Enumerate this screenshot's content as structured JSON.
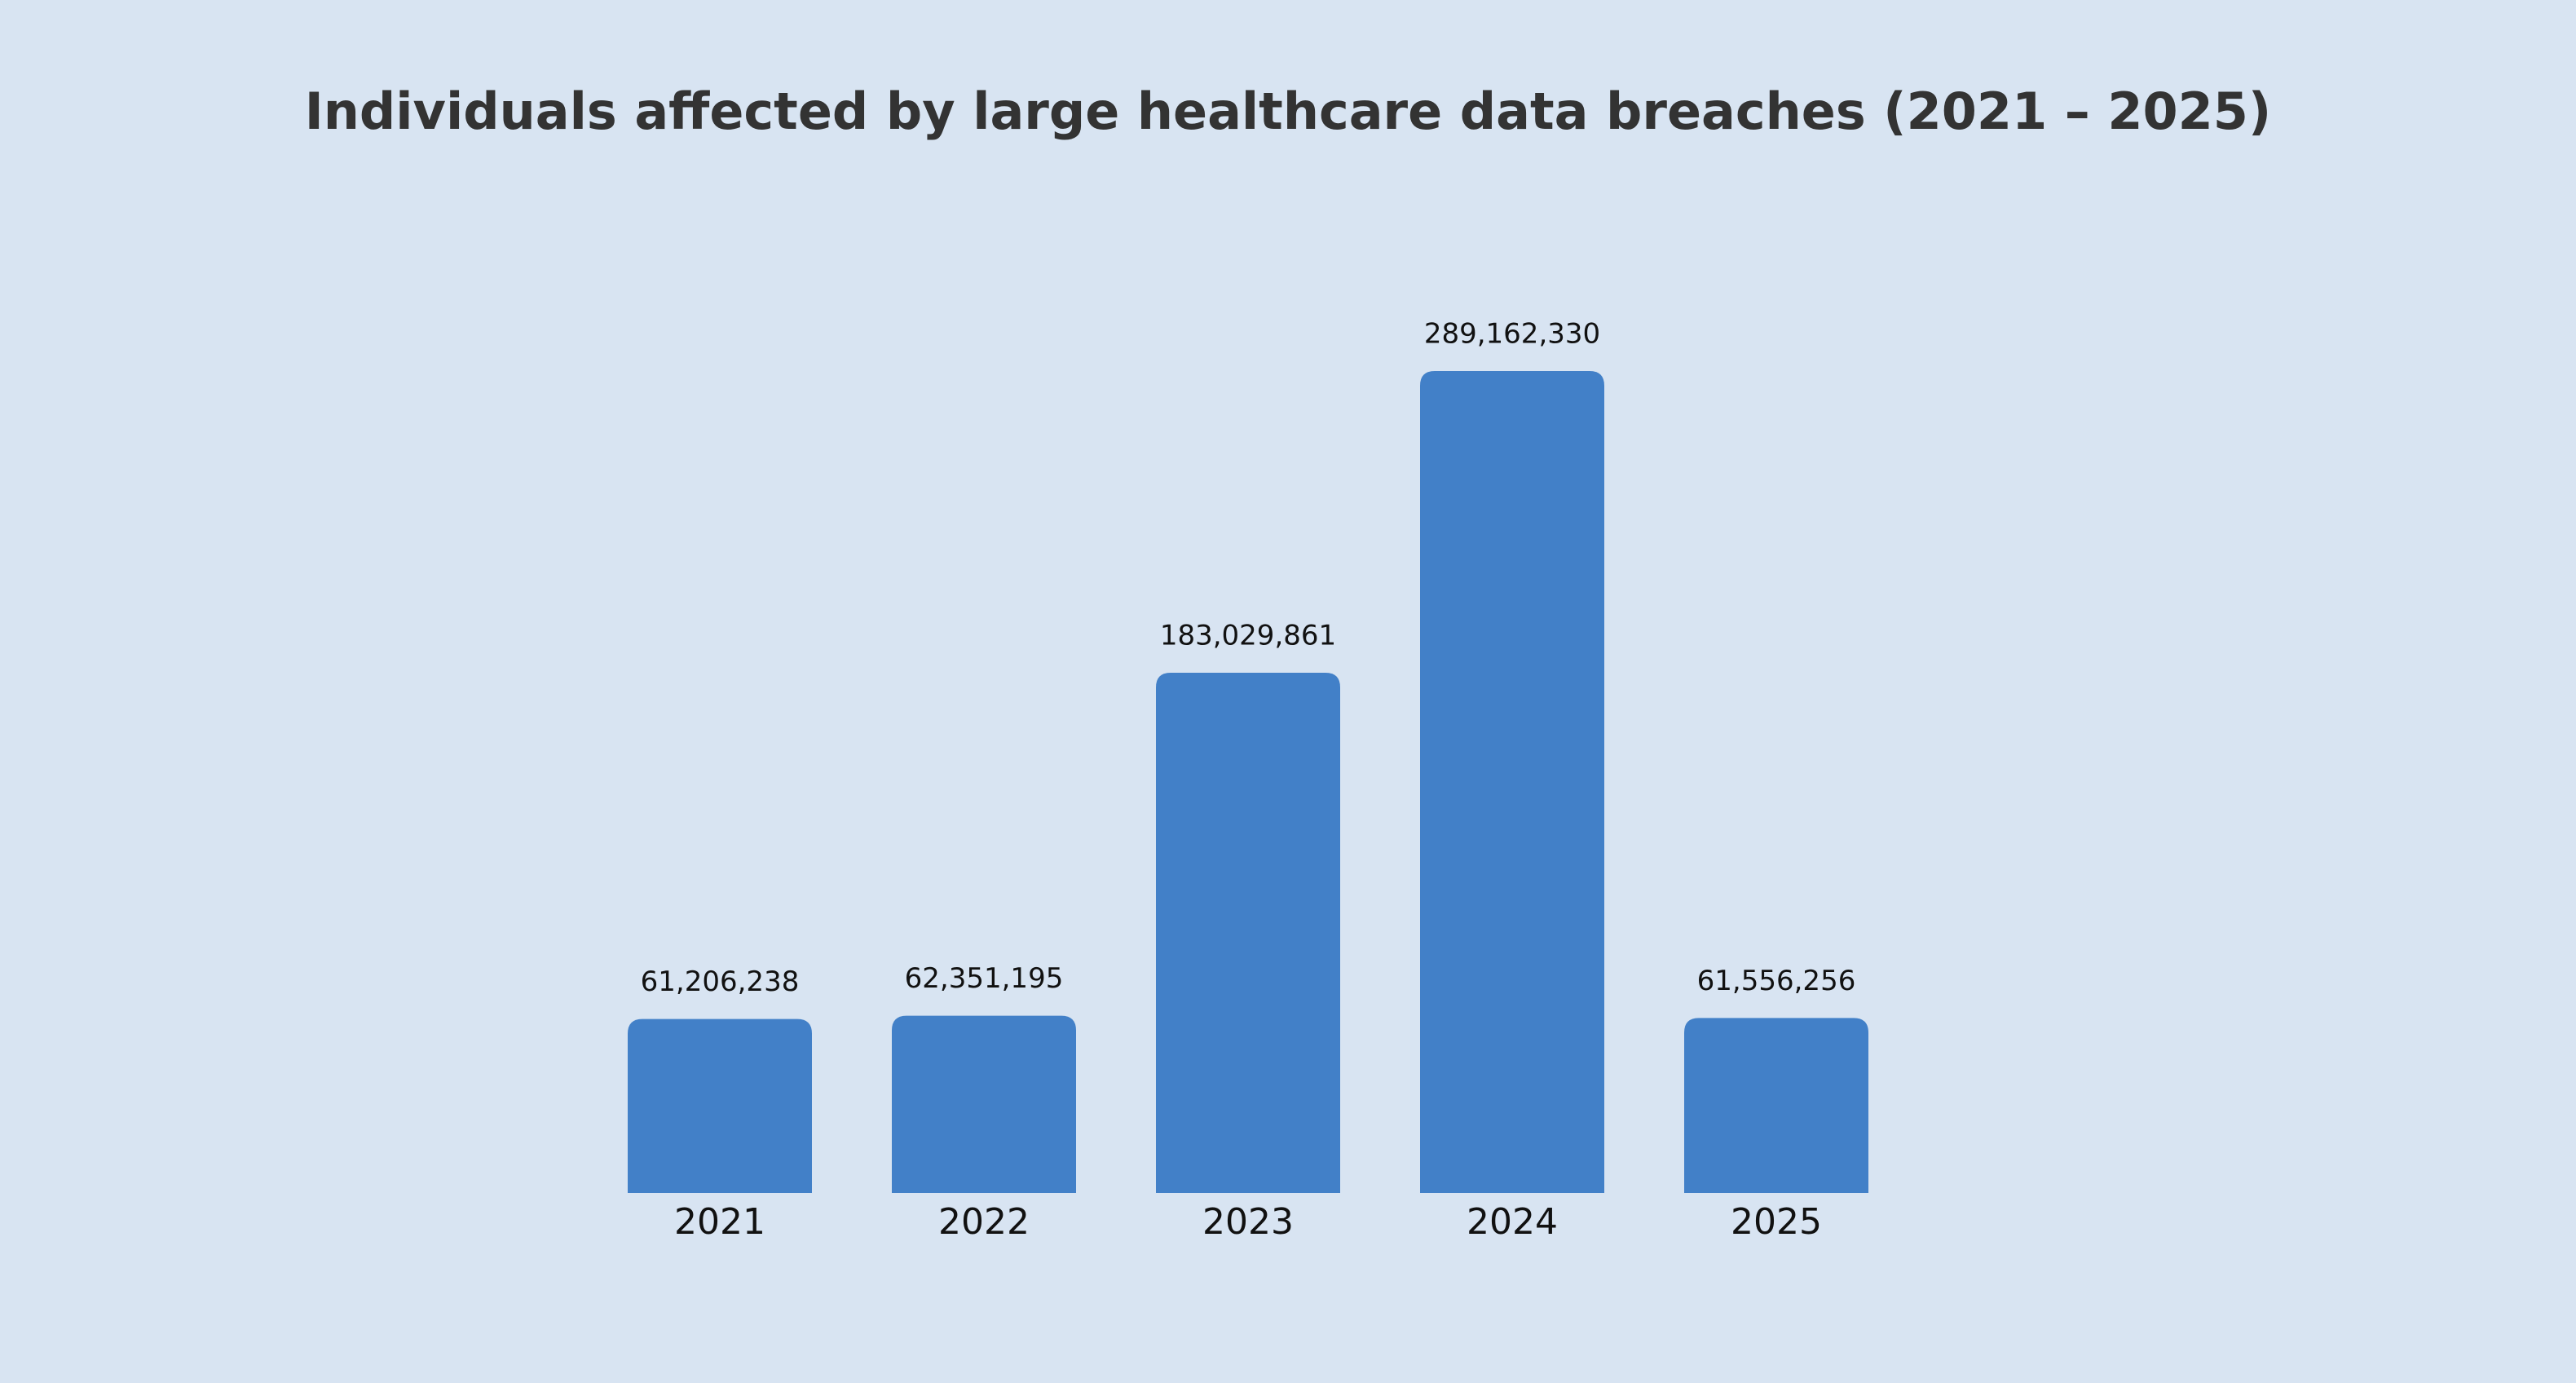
{
  "chart_data": {
    "type": "bar",
    "title": "Individuals affected by large healthcare data breaches (2021 – 2025)",
    "categories": [
      "2021",
      "2022",
      "2023",
      "2024",
      "2025"
    ],
    "values": [
      61206238,
      62351195,
      183029861,
      289162330,
      61556256
    ],
    "value_labels": [
      "61,206,238",
      "62,351,195",
      "183,029,861",
      "289,162,330",
      "61,556,256"
    ],
    "color": "#4280c8"
  }
}
